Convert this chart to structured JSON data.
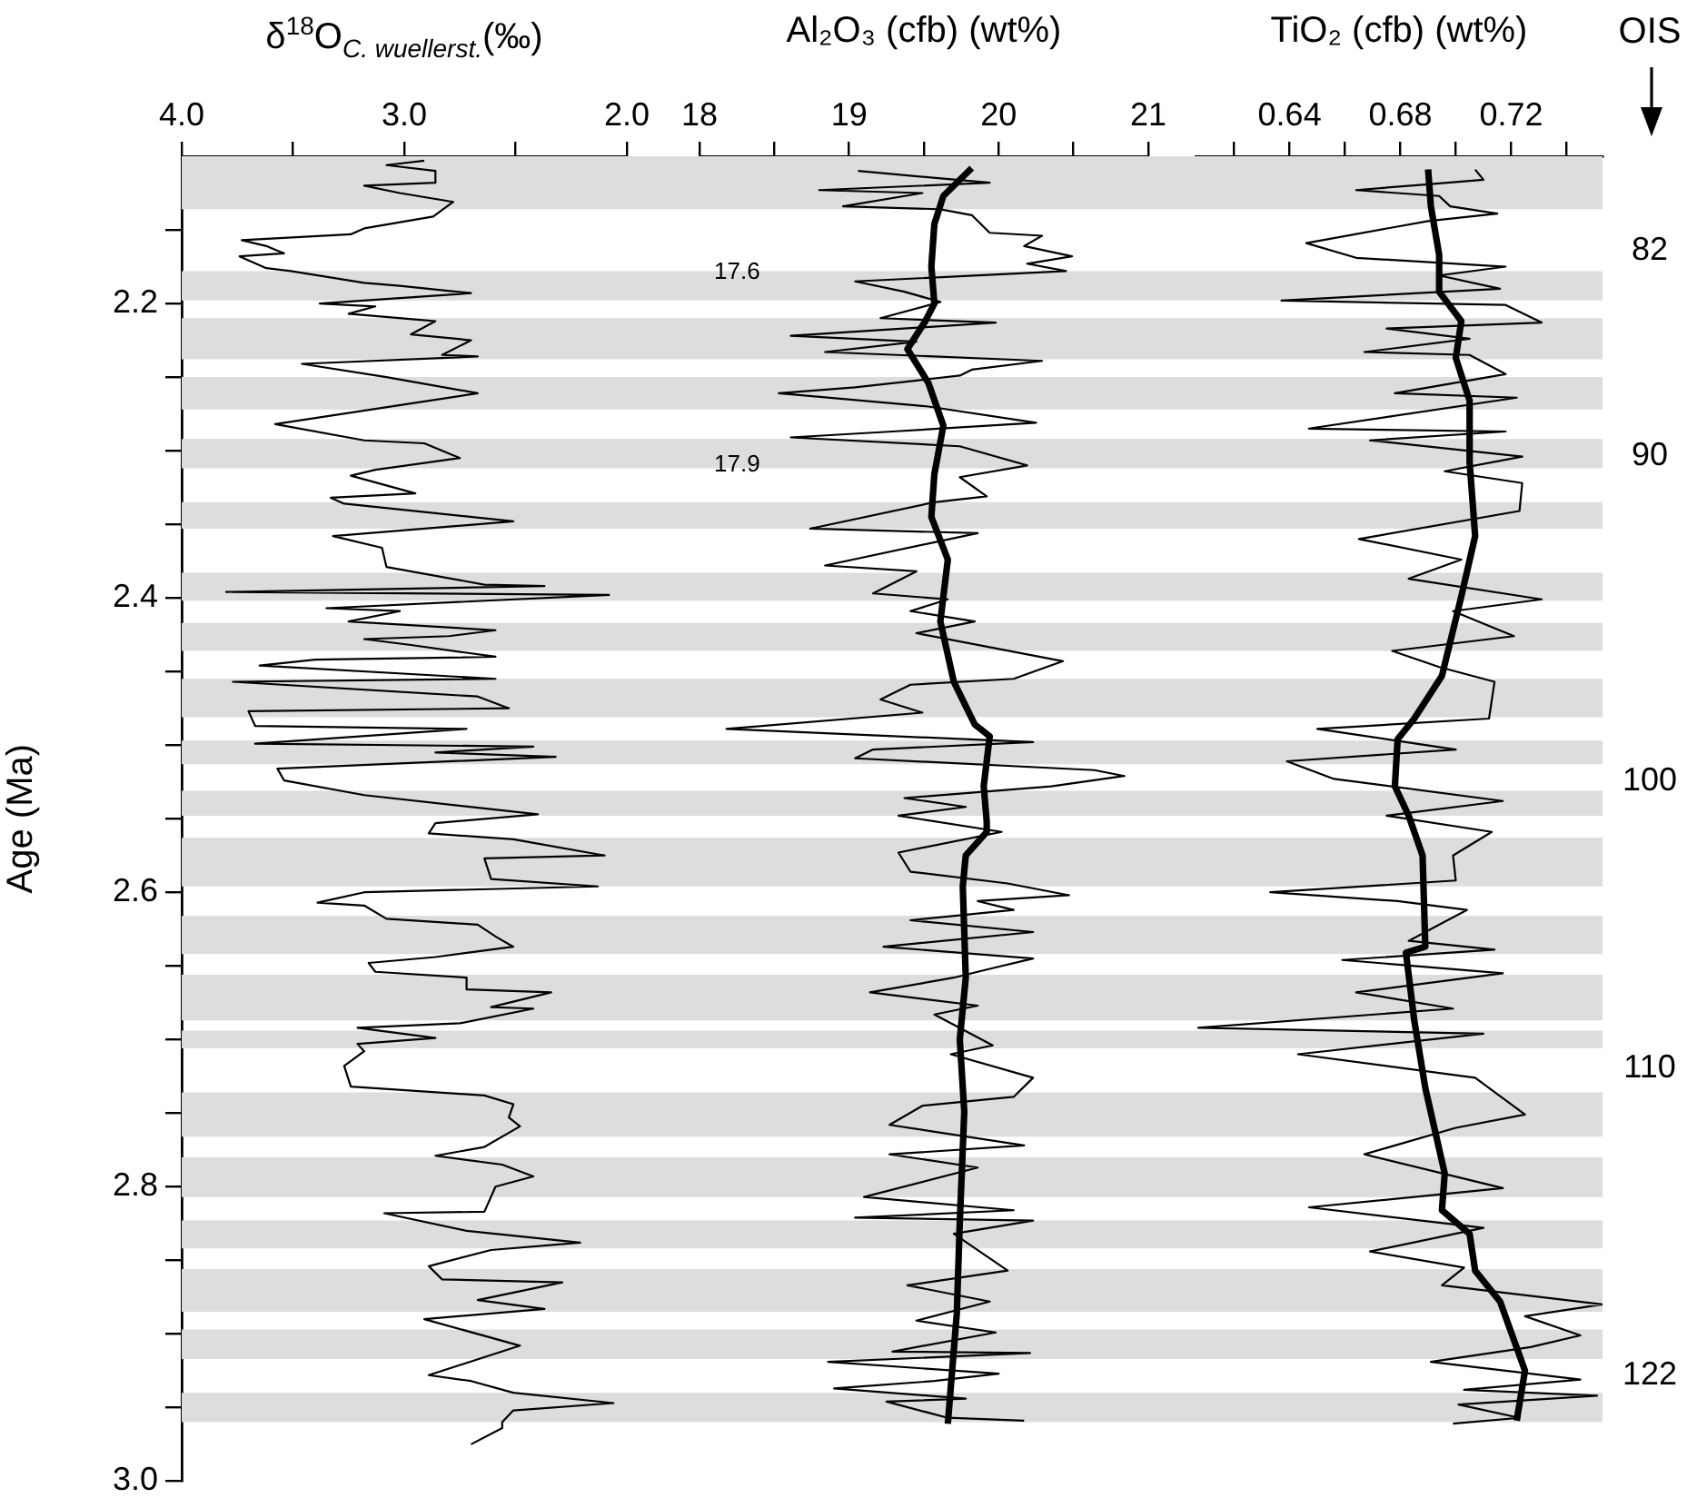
{
  "chart_data": [
    {
      "type": "line",
      "xlabel": "δ$^{18}$O$_{C. wuellerst.}$(‰)",
      "ylabel": "Age (Ma)",
      "xlim": [
        4.0,
        2.0
      ],
      "xticks": [
        {
          "value": 4,
          "label": "4.0"
        },
        {
          "value": 3.5,
          "label": null
        },
        {
          "value": 3,
          "label": "3.0"
        },
        {
          "value": 2.5,
          "label": null
        },
        {
          "value": 2,
          "label": "2.0"
        }
      ],
      "ylim": [
        3.0,
        2.1
      ],
      "yticks": [
        {
          "value": 2.15,
          "label": null
        },
        2.2,
        {
          "value": 2.25,
          "label": null
        },
        {
          "value": 2.3,
          "label": null
        },
        {
          "value": 2.35,
          "label": null
        },
        2.4,
        {
          "value": 2.45,
          "label": null
        },
        {
          "value": 2.5,
          "label": null
        },
        {
          "value": 2.55,
          "label": null
        },
        2.6,
        {
          "value": 2.65,
          "label": null
        },
        {
          "value": 2.7,
          "label": null
        },
        {
          "value": 2.75,
          "label": null
        },
        2.8,
        {
          "value": 2.85,
          "label": null
        },
        {
          "value": 2.9,
          "label": null
        },
        {
          "value": 2.95,
          "label": null
        },
        {
          "value": 3,
          "label": "3.0"
        }
      ],
      "series": [
        {
          "color": "#000000",
          "x": [
            2.91,
            3.08,
            2.86,
            2.86,
            3.18,
            3.02,
            2.78,
            2.87,
            3.18,
            3.24,
            3.73,
            3.62,
            3.54,
            3.74,
            3.62,
            3.51,
            3.18,
            3.02,
            2.7,
            3.38,
            3.13,
            3.25,
            2.94,
            2.86,
            2.97,
            2.7,
            2.83,
            2.67,
            3.46,
            3.08,
            2.67,
            3.58,
            3.18,
            2.91,
            2.75,
            3.13,
            3.24,
            2.95,
            3.33,
            3.27,
            2.51,
            3.32,
            3.1,
            3.08,
            2.64,
            2.37,
            3.8,
            2.08,
            3.35,
            3.02,
            3.25,
            2.59,
            2.8,
            3.18,
            2.97,
            2.59,
            3.4,
            3.65,
            2.59,
            3.77,
            2.67,
            2.53,
            3.7,
            3.67,
            2.72,
            3.67,
            2.42,
            2.86,
            2.32,
            3.57,
            3.54,
            3.18,
            2.4,
            2.86,
            2.89,
            2.51,
            2.1,
            2.64,
            2.61,
            2.13,
            3.18,
            3.39,
            3.18,
            3.08,
            2.67,
            2.59,
            2.51,
            2.86,
            3.16,
            3.13,
            2.72,
            2.72,
            2.34,
            2.61,
            2.42,
            2.75,
            3.21,
            2.86,
            3.21,
            3.18,
            3.27,
            3.24,
            2.64,
            2.51,
            2.53,
            2.48,
            2.64,
            2.86,
            2.56,
            2.42,
            2.59,
            2.64,
            3.09,
            2.72,
            2.21,
            2.61,
            2.89,
            2.83,
            2.29,
            2.67,
            2.37,
            2.91,
            2.48,
            2.89,
            2.7,
            2.51,
            2.06,
            2.51,
            2.56,
            2.56,
            2.7
          ],
          "values": [
            2.103,
            2.106,
            2.11,
            2.118,
            2.12,
            2.125,
            2.131,
            2.141,
            2.149,
            2.153,
            2.157,
            2.161,
            2.166,
            2.168,
            2.176,
            2.178,
            2.186,
            2.188,
            2.193,
            2.2,
            2.202,
            2.207,
            2.211,
            2.212,
            2.221,
            2.225,
            2.235,
            2.236,
            2.241,
            2.25,
            2.261,
            2.282,
            2.293,
            2.295,
            2.305,
            2.313,
            2.317,
            2.329,
            2.332,
            2.336,
            2.348,
            2.358,
            2.366,
            2.379,
            2.391,
            2.392,
            2.396,
            2.398,
            2.407,
            2.409,
            2.416,
            2.422,
            2.426,
            2.428,
            2.432,
            2.44,
            2.442,
            2.446,
            2.455,
            2.457,
            2.467,
            2.475,
            2.477,
            2.487,
            2.489,
            2.499,
            2.501,
            2.505,
            2.508,
            2.516,
            2.524,
            2.534,
            2.547,
            2.553,
            2.56,
            2.564,
            2.575,
            2.577,
            2.591,
            2.596,
            2.6,
            2.607,
            2.609,
            2.618,
            2.622,
            2.63,
            2.637,
            2.644,
            2.648,
            2.654,
            2.658,
            2.666,
            2.668,
            2.678,
            2.679,
            2.689,
            2.692,
            2.699,
            2.703,
            2.708,
            2.718,
            2.732,
            2.738,
            2.744,
            2.753,
            2.759,
            2.773,
            2.779,
            2.785,
            2.793,
            2.8,
            2.817,
            2.818,
            2.83,
            2.838,
            2.843,
            2.854,
            2.863,
            2.865,
            2.877,
            2.883,
            2.89,
            2.908,
            2.928,
            2.932,
            2.94,
            2.947,
            2.952,
            2.96,
            2.964,
            2.975
          ]
        }
      ],
      "bands": [
        {
          "axis": "y",
          "from": 2.1,
          "to": 2.136,
          "color": "#dddddd"
        },
        {
          "axis": "y",
          "from": 2.178,
          "to": 2.198,
          "color": "#dddddd"
        },
        {
          "axis": "y",
          "from": 2.21,
          "to": 2.238,
          "color": "#dddddd"
        },
        {
          "axis": "y",
          "from": 2.25,
          "to": 2.272,
          "color": "#dddddd"
        },
        {
          "axis": "y",
          "from": 2.292,
          "to": 2.312,
          "color": "#dddddd"
        },
        {
          "axis": "y",
          "from": 2.335,
          "to": 2.353,
          "color": "#dddddd"
        },
        {
          "axis": "y",
          "from": 2.383,
          "to": 2.402,
          "color": "#dddddd"
        },
        {
          "axis": "y",
          "from": 2.417,
          "to": 2.436,
          "color": "#dddddd"
        },
        {
          "axis": "y",
          "from": 2.455,
          "to": 2.481,
          "color": "#dddddd"
        },
        {
          "axis": "y",
          "from": 2.497,
          "to": 2.513,
          "color": "#dddddd"
        },
        {
          "axis": "y",
          "from": 2.531,
          "to": 2.548,
          "color": "#dddddd"
        },
        {
          "axis": "y",
          "from": 2.563,
          "to": 2.596,
          "color": "#dddddd"
        },
        {
          "axis": "y",
          "from": 2.616,
          "to": 2.642,
          "color": "#dddddd"
        },
        {
          "axis": "y",
          "from": 2.656,
          "to": 2.687,
          "color": "#dddddd"
        },
        {
          "axis": "y",
          "from": 2.694,
          "to": 2.706,
          "color": "#dddddd"
        },
        {
          "axis": "y",
          "from": 2.736,
          "to": 2.766,
          "color": "#dddddd"
        },
        {
          "axis": "y",
          "from": 2.78,
          "to": 2.807,
          "color": "#dddddd"
        },
        {
          "axis": "y",
          "from": 2.823,
          "to": 2.842,
          "color": "#dddddd"
        },
        {
          "axis": "y",
          "from": 2.856,
          "to": 2.885,
          "color": "#dddddd"
        },
        {
          "axis": "y",
          "from": 2.897,
          "to": 2.917,
          "color": "#dddddd"
        },
        {
          "axis": "y",
          "from": 2.94,
          "to": 2.96,
          "color": "#dddddd"
        }
      ]
    },
    {
      "type": "line",
      "xlabel": "Al₂O₃ (cfb) (wt%)",
      "tick_labels": "x",
      "xlim": [
        18,
        21
      ],
      "xticks": [
        18,
        {
          "value": 18.5,
          "label": null
        },
        19,
        {
          "value": 19.5,
          "label": null
        },
        20,
        {
          "value": 20.5,
          "label": null
        },
        21
      ],
      "ylim": [
        3.0,
        2.1
      ],
      "series": [
        {
          "color": "#000000",
          "x": [
            19.06,
            19.94,
            18.8,
            19.49,
            18.96,
            19.61,
            19.82,
            19.94,
            20.29,
            20.17,
            20.49,
            20.19,
            20.45,
            19.04,
            19.37,
            19.61,
            19.21,
            19.98,
            18.61,
            19.45,
            18.84,
            20.29,
            19.82,
            19.74,
            19.04,
            18.53,
            19.53,
            20.25,
            19.29,
            18.61,
            19.74,
            20.19,
            19.74,
            19.92,
            19.57,
            18.74,
            19.86,
            18.84,
            19.45,
            19.16,
            19.66,
            19.41,
            19.84,
            19.45,
            20.43,
            20.1,
            19.41,
            19.21,
            19.49,
            18.18,
            20.23,
            19.16,
            19.04,
            20.64,
            20.84,
            20.35,
            19.37,
            19.78,
            19.33,
            20.02,
            19.33,
            19.41,
            20.06,
            20.47,
            19.86,
            20.1,
            19.41,
            20.23,
            19.23,
            20.23,
            19.94,
            19.7,
            19.14,
            19.86,
            19.57,
            19.96,
            19.68,
            20.23,
            20.1,
            19.49,
            19.27,
            20.17,
            19.27,
            19.86,
            19.1,
            20.1,
            19.04,
            20.23,
            19.7,
            20.06,
            19.39,
            19.94,
            19.45,
            19.98,
            19.29,
            20.21,
            18.86,
            20.0,
            19.57,
            18.9,
            19.78,
            19.25,
            19.66,
            20.17
          ],
          "values": [
            2.11,
            2.118,
            2.123,
            2.125,
            2.134,
            2.136,
            2.14,
            2.152,
            2.154,
            2.161,
            2.168,
            2.173,
            2.178,
            2.185,
            2.192,
            2.199,
            2.21,
            2.213,
            2.222,
            2.226,
            2.233,
            2.239,
            2.245,
            2.249,
            2.257,
            2.261,
            2.27,
            2.281,
            2.287,
            2.291,
            2.297,
            2.31,
            2.318,
            2.331,
            2.335,
            2.353,
            2.356,
            2.378,
            2.382,
            2.397,
            2.401,
            2.409,
            2.416,
            2.424,
            2.443,
            2.455,
            2.459,
            2.469,
            2.478,
            2.489,
            2.498,
            2.503,
            2.509,
            2.517,
            2.521,
            2.528,
            2.536,
            2.542,
            2.548,
            2.559,
            2.573,
            2.586,
            2.594,
            2.602,
            2.606,
            2.612,
            2.619,
            2.627,
            2.637,
            2.645,
            2.652,
            2.658,
            2.668,
            2.677,
            2.683,
            2.704,
            2.71,
            2.726,
            2.739,
            2.745,
            2.758,
            2.772,
            2.778,
            2.787,
            2.807,
            2.816,
            2.821,
            2.823,
            2.832,
            2.857,
            2.867,
            2.878,
            2.891,
            2.899,
            2.912,
            2.913,
            2.919,
            2.927,
            2.932,
            2.937,
            2.944,
            2.946,
            2.957,
            2.959
          ]
        },
        {
          "color": "#000000",
          "x": [
            19.82,
            19.63,
            19.57,
            19.55,
            19.57,
            19.51,
            19.39,
            19.53,
            19.63,
            19.57,
            19.55,
            19.66,
            19.61,
            19.7,
            19.84,
            19.94,
            19.9,
            19.92,
            19.92,
            19.78,
            19.76,
            19.78,
            19.74,
            19.77,
            19.74,
            19.72,
            19.66
          ],
          "values": [
            2.108,
            2.127,
            2.146,
            2.175,
            2.2,
            2.212,
            2.231,
            2.254,
            2.283,
            2.316,
            2.345,
            2.374,
            2.416,
            2.457,
            2.486,
            2.494,
            2.528,
            2.552,
            2.559,
            2.575,
            2.596,
            2.658,
            2.7,
            2.749,
            2.824,
            2.886,
            2.961
          ]
        }
      ],
      "annotations": [
        "17.6",
        "17.9"
      ],
      "bands": [
        {
          "axis": "y",
          "from": 2.1,
          "to": 2.136,
          "color": "#dddddd"
        },
        {
          "axis": "y",
          "from": 2.178,
          "to": 2.198,
          "color": "#dddddd"
        },
        {
          "axis": "y",
          "from": 2.21,
          "to": 2.238,
          "color": "#dddddd"
        },
        {
          "axis": "y",
          "from": 2.25,
          "to": 2.272,
          "color": "#dddddd"
        },
        {
          "axis": "y",
          "from": 2.292,
          "to": 2.312,
          "color": "#dddddd"
        },
        {
          "axis": "y",
          "from": 2.335,
          "to": 2.353,
          "color": "#dddddd"
        },
        {
          "axis": "y",
          "from": 2.383,
          "to": 2.402,
          "color": "#dddddd"
        },
        {
          "axis": "y",
          "from": 2.417,
          "to": 2.436,
          "color": "#dddddd"
        },
        {
          "axis": "y",
          "from": 2.455,
          "to": 2.481,
          "color": "#dddddd"
        },
        {
          "axis": "y",
          "from": 2.497,
          "to": 2.513,
          "color": "#dddddd"
        },
        {
          "axis": "y",
          "from": 2.531,
          "to": 2.548,
          "color": "#dddddd"
        },
        {
          "axis": "y",
          "from": 2.563,
          "to": 2.596,
          "color": "#dddddd"
        },
        {
          "axis": "y",
          "from": 2.616,
          "to": 2.642,
          "color": "#dddddd"
        },
        {
          "axis": "y",
          "from": 2.656,
          "to": 2.687,
          "color": "#dddddd"
        },
        {
          "axis": "y",
          "from": 2.694,
          "to": 2.706,
          "color": "#dddddd"
        },
        {
          "axis": "y",
          "from": 2.736,
          "to": 2.766,
          "color": "#dddddd"
        },
        {
          "axis": "y",
          "from": 2.78,
          "to": 2.807,
          "color": "#dddddd"
        },
        {
          "axis": "y",
          "from": 2.823,
          "to": 2.842,
          "color": "#dddddd"
        },
        {
          "axis": "y",
          "from": 2.856,
          "to": 2.885,
          "color": "#dddddd"
        },
        {
          "axis": "y",
          "from": 2.897,
          "to": 2.917,
          "color": "#dddddd"
        },
        {
          "axis": "y",
          "from": 2.94,
          "to": 2.96,
          "color": "#dddddd"
        }
      ]
    },
    {
      "type": "line",
      "xlabel": "TiO₂ (cfb) (wt%)",
      "tick_labels": "x",
      "xlim": [
        0.606,
        0.753
      ],
      "xticks": [
        {
          "value": 0.62,
          "label": null
        },
        0.64,
        {
          "value": 0.66,
          "label": null
        },
        0.68,
        {
          "value": 0.7,
          "label": null
        },
        0.72,
        {
          "value": 0.74,
          "label": null
        }
      ],
      "ylim": [
        3.0,
        2.1
      ],
      "series": [
        {
          "color": "#000000",
          "x": [
            0.707,
            0.71,
            0.69,
            0.664,
            0.694,
            0.698,
            0.715,
            0.69,
            0.646,
            0.664,
            0.718,
            0.694,
            0.716,
            0.637,
            0.718,
            0.731,
            0.675,
            0.705,
            0.667,
            0.705,
            0.718,
            0.678,
            0.722,
            0.647,
            0.718,
            0.669,
            0.724,
            0.696,
            0.724,
            0.723,
            0.665,
            0.702,
            0.683,
            0.731,
            0.699,
            0.721,
            0.677,
            0.694,
            0.714,
            0.712,
            0.65,
            0.7,
            0.639,
            0.656,
            0.717,
            0.675,
            0.713,
            0.699,
            0.7,
            0.633,
            0.679,
            0.704,
            0.683,
            0.714,
            0.659,
            0.717,
            0.664,
            0.699,
            0.607,
            0.71,
            0.643,
            0.707,
            0.725,
            0.7,
            0.667,
            0.717,
            0.647,
            0.71,
            0.669,
            0.703,
            0.695,
            0.753,
            0.725,
            0.745,
            0.727,
            0.691,
            0.745,
            0.703,
            0.751,
            0.701,
            0.723,
            0.699
          ],
          "values": [
            2.109,
            2.116,
            2.119,
            2.123,
            2.127,
            2.134,
            2.139,
            2.144,
            2.159,
            2.169,
            2.175,
            2.181,
            2.19,
            2.198,
            2.201,
            2.213,
            2.217,
            2.224,
            2.233,
            2.235,
            2.248,
            2.261,
            2.264,
            2.285,
            2.287,
            2.293,
            2.304,
            2.314,
            2.322,
            2.341,
            2.36,
            2.374,
            2.387,
            2.401,
            2.409,
            2.426,
            2.436,
            2.447,
            2.457,
            2.482,
            2.489,
            2.503,
            2.511,
            2.523,
            2.538,
            2.548,
            2.559,
            2.575,
            2.592,
            2.6,
            2.606,
            2.612,
            2.633,
            2.639,
            2.646,
            2.655,
            2.668,
            2.679,
            2.692,
            2.696,
            2.71,
            2.726,
            2.751,
            2.76,
            2.778,
            2.801,
            2.814,
            2.828,
            2.844,
            2.855,
            2.867,
            2.88,
            2.888,
            2.901,
            2.909,
            2.919,
            2.931,
            2.938,
            2.942,
            2.948,
            2.957,
            2.961
          ]
        },
        {
          "color": "#000000",
          "x": [
            0.69,
            0.691,
            0.694,
            0.694,
            0.702,
            0.7,
            0.705,
            0.705,
            0.707,
            0.702,
            0.695,
            0.685,
            0.679,
            0.678,
            0.683,
            0.688,
            0.689,
            0.682,
            0.685,
            0.689,
            0.696,
            0.695,
            0.705,
            0.707,
            0.716,
            0.725,
            0.722
          ],
          "values": [
            2.109,
            2.134,
            2.167,
            2.192,
            2.212,
            2.237,
            2.266,
            2.308,
            2.358,
            2.399,
            2.453,
            2.482,
            2.496,
            2.528,
            2.548,
            2.575,
            2.637,
            2.641,
            2.687,
            2.733,
            2.791,
            2.816,
            2.832,
            2.857,
            2.878,
            2.925,
            2.959
          ]
        }
      ],
      "annotations": [
        "OIS",
        "82",
        "90",
        "100",
        "110",
        "122"
      ],
      "bands": [
        {
          "axis": "y",
          "from": 2.1,
          "to": 2.136,
          "color": "#dddddd"
        },
        {
          "axis": "y",
          "from": 2.178,
          "to": 2.198,
          "color": "#dddddd"
        },
        {
          "axis": "y",
          "from": 2.21,
          "to": 2.238,
          "color": "#dddddd"
        },
        {
          "axis": "y",
          "from": 2.25,
          "to": 2.272,
          "color": "#dddddd"
        },
        {
          "axis": "y",
          "from": 2.292,
          "to": 2.312,
          "color": "#dddddd"
        },
        {
          "axis": "y",
          "from": 2.335,
          "to": 2.353,
          "color": "#dddddd"
        },
        {
          "axis": "y",
          "from": 2.383,
          "to": 2.402,
          "color": "#dddddd"
        },
        {
          "axis": "y",
          "from": 2.417,
          "to": 2.436,
          "color": "#dddddd"
        },
        {
          "axis": "y",
          "from": 2.455,
          "to": 2.481,
          "color": "#dddddd"
        },
        {
          "axis": "y",
          "from": 2.497,
          "to": 2.513,
          "color": "#dddddd"
        },
        {
          "axis": "y",
          "from": 2.531,
          "to": 2.548,
          "color": "#dddddd"
        },
        {
          "axis": "y",
          "from": 2.563,
          "to": 2.596,
          "color": "#dddddd"
        },
        {
          "axis": "y",
          "from": 2.616,
          "to": 2.642,
          "color": "#dddddd"
        },
        {
          "axis": "y",
          "from": 2.656,
          "to": 2.687,
          "color": "#dddddd"
        },
        {
          "axis": "y",
          "from": 2.694,
          "to": 2.706,
          "color": "#dddddd"
        },
        {
          "axis": "y",
          "from": 2.736,
          "to": 2.766,
          "color": "#dddddd"
        },
        {
          "axis": "y",
          "from": 2.78,
          "to": 2.807,
          "color": "#dddddd"
        },
        {
          "axis": "y",
          "from": 2.823,
          "to": 2.842,
          "color": "#dddddd"
        },
        {
          "axis": "y",
          "from": 2.856,
          "to": 2.885,
          "color": "#dddddd"
        },
        {
          "axis": "y",
          "from": 2.897,
          "to": 2.917,
          "color": "#dddddd"
        },
        {
          "axis": "y",
          "from": 2.94,
          "to": 2.96,
          "color": "#dddddd"
        }
      ]
    }
  ]
}
